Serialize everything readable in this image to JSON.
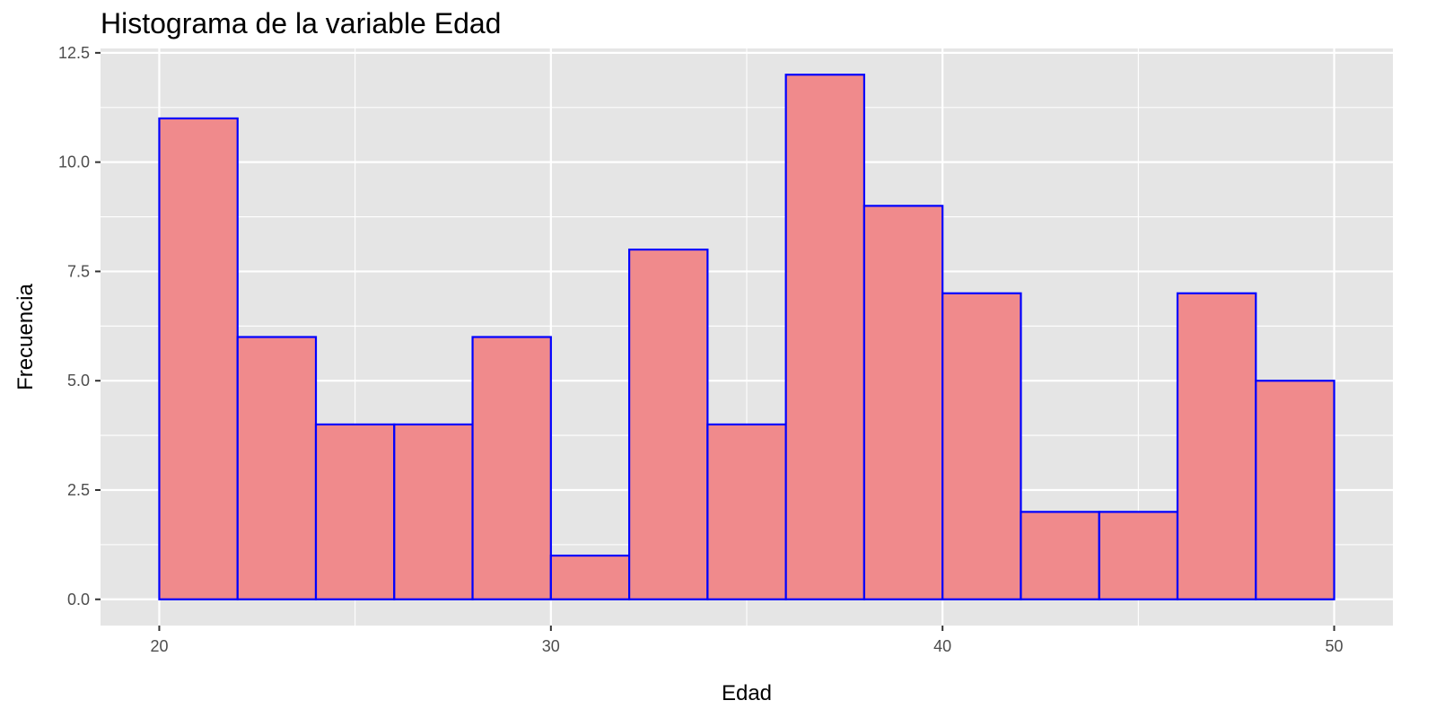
{
  "chart_data": {
    "type": "bar",
    "title": "Histograma de la variable Edad",
    "xlabel": "Edad",
    "ylabel": "Frecuencia",
    "bins": [
      {
        "start": 20,
        "end": 22,
        "count": 11
      },
      {
        "start": 22,
        "end": 24,
        "count": 6
      },
      {
        "start": 24,
        "end": 26,
        "count": 4
      },
      {
        "start": 26,
        "end": 28,
        "count": 4
      },
      {
        "start": 28,
        "end": 30,
        "count": 6
      },
      {
        "start": 30,
        "end": 32,
        "count": 1
      },
      {
        "start": 32,
        "end": 34,
        "count": 8
      },
      {
        "start": 34,
        "end": 36,
        "count": 4
      },
      {
        "start": 36,
        "end": 38,
        "count": 12
      },
      {
        "start": 38,
        "end": 40,
        "count": 9
      },
      {
        "start": 40,
        "end": 42,
        "count": 7
      },
      {
        "start": 42,
        "end": 44,
        "count": 2
      },
      {
        "start": 44,
        "end": 46,
        "count": 2
      },
      {
        "start": 46,
        "end": 48,
        "count": 7
      },
      {
        "start": 48,
        "end": 50,
        "count": 5
      }
    ],
    "x_ticks": [
      20,
      30,
      40,
      50
    ],
    "x_tick_labels": [
      "20",
      "30",
      "40",
      "50"
    ],
    "y_ticks": [
      0,
      2.5,
      5,
      7.5,
      10,
      12.5
    ],
    "y_tick_labels": [
      "0.0",
      "2.5",
      "5.0",
      "7.5",
      "10.0",
      "12.5"
    ],
    "xlim": [
      18.5,
      51.5
    ],
    "ylim": [
      -0.6,
      12.6
    ],
    "grid": true,
    "legend": "none",
    "colors": {
      "panel_background": "#e5e5e5",
      "grid": "#ffffff",
      "bar_fill": "#f08a8c",
      "bar_stroke": "#0000ff",
      "tick_text": "#4d4d4d"
    }
  }
}
